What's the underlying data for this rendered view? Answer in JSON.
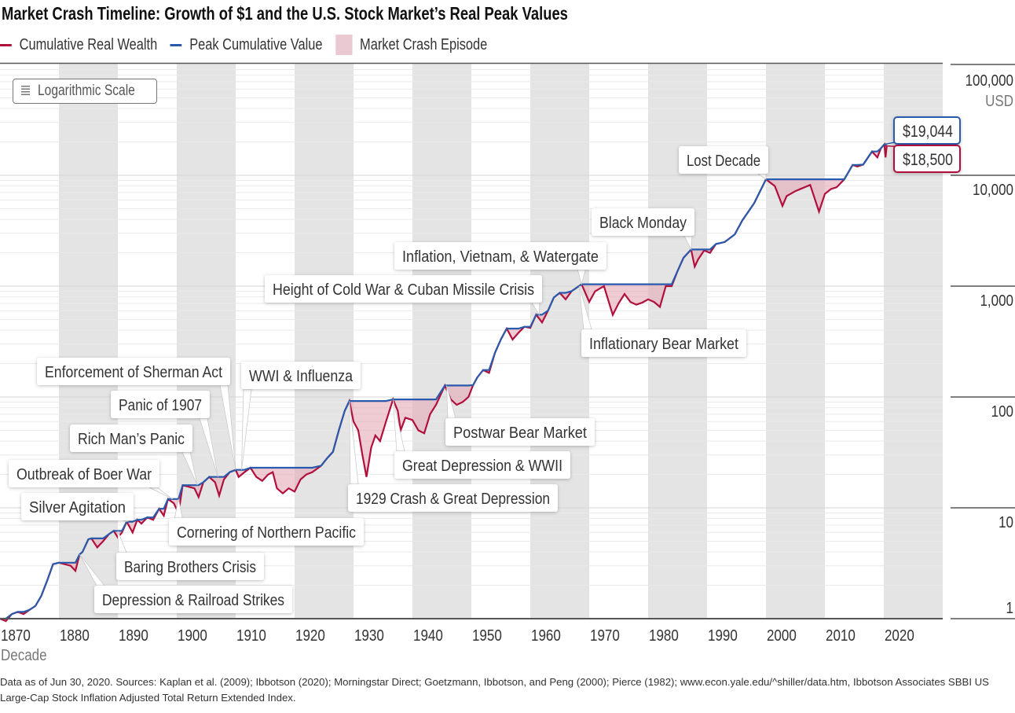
{
  "title": "Market Crash Timeline: Growth of $1 and the U.S. Stock Market’s Real Peak Values",
  "legend": [
    {
      "label": "Cumulative Real Wealth",
      "color": "#b0103c"
    },
    {
      "label": "Peak Cumulative Value",
      "color": "#2a5aab"
    },
    {
      "label": "Market Crash Episode",
      "color": "#ebc9d2"
    }
  ],
  "scale_button": "Logarithmic Scale",
  "footer": "Data as of Jun 30, 2020. Sources: Kaplan et al. (2009); Ibbotson (2020); Morningstar Direct; Goetzmann, Ibbotson, and Peng (2000); Pierce (1982); www.econ.yale.edu/^shiller/data.htm, Ibbotson Associates SBBI US Large-Cap Stock Inflation Adjusted Total Return Extended Index.",
  "chart_data": {
    "type": "line",
    "title": "Market Crash Timeline: Growth of $1 and the U.S. Stock Market’s Real Peak Values",
    "xlabel": "Decade",
    "ylabel": "USD",
    "yscale": "log",
    "xlim": [
      1870,
      2030
    ],
    "ylim": [
      1,
      100000
    ],
    "grid": "horizontal minor log gridlines; alternating grey decade bands",
    "legend_position": "top-left",
    "x_ticks": [
      "1870",
      "1880",
      "1890",
      "1900",
      "1910",
      "1920",
      "1930",
      "1940",
      "1950",
      "1960",
      "1970",
      "1980",
      "1990",
      "2000",
      "2010",
      "2020"
    ],
    "y_ticks": [
      "1",
      "10",
      "100",
      "1,000",
      "10,000",
      "100,000"
    ],
    "series": [
      {
        "name": "Cumulative Real Wealth",
        "color": "#b0103c",
        "x": [
          1870,
          1871,
          1872,
          1873,
          1874,
          1875,
          1876,
          1877,
          1878,
          1879,
          1880,
          1882,
          1882.8,
          1883.5,
          1884,
          1885,
          1885.5,
          1886.5,
          1887.5,
          1888.5,
          1889.3,
          1890,
          1890.7,
          1891.5,
          1892.5,
          1893.3,
          1894,
          1895,
          1896,
          1897,
          1897.8,
          1898.5,
          1899.5,
          1900.3,
          1901,
          1902,
          1903,
          1903.7,
          1904.5,
          1905.5,
          1906.5,
          1907.2,
          1908,
          1909,
          1910,
          1910.5,
          1911.5,
          1912.5,
          1913.5,
          1914.5,
          1915.5,
          1916.3,
          1917,
          1918,
          1919,
          1920,
          1921,
          1922,
          1923,
          1924.5,
          1925.5,
          1926.5,
          1927.5,
          1928.5,
          1929.3,
          1930,
          1930.8,
          1931.5,
          1932.2,
          1933,
          1933.7,
          1934.5,
          1935.5,
          1936.7,
          1937.5,
          1938,
          1938.8,
          1940,
          1941,
          1942,
          1943,
          1944,
          1945.5,
          1946.5,
          1947.5,
          1948.5,
          1949.5,
          1950.3,
          1951,
          1952,
          1953,
          1954,
          1955,
          1956,
          1957,
          1958,
          1959,
          1960,
          1961,
          1962,
          1963,
          1964,
          1965,
          1966,
          1967,
          1968.7,
          1970,
          1971,
          1972.5,
          1974,
          1975,
          1976,
          1977,
          1978,
          1979,
          1980,
          1981,
          1982,
          1983,
          1984,
          1985,
          1986,
          1987.3,
          1987.9,
          1988.5,
          1989.5,
          1990.5,
          1991.5,
          1993,
          1994.7,
          1996,
          1998,
          2000,
          2001.5,
          2002.8,
          2003.5,
          2005,
          2007.5,
          2009,
          2010,
          2011,
          2012,
          2013.3,
          2014.7,
          2015.5,
          2016.5,
          2018,
          2018.9,
          2019.5,
          2020.1,
          2020.3,
          2020.5
        ],
        "y": [
          1.0,
          0.95,
          1.1,
          1.15,
          1.1,
          1.2,
          1.3,
          1.6,
          2.2,
          3.1,
          3.2,
          3.0,
          2.7,
          3.8,
          4.0,
          5.2,
          5.3,
          4.4,
          5.0,
          5.8,
          6.2,
          5.4,
          6.0,
          7.5,
          6.0,
          7.8,
          7.2,
          8.2,
          7.8,
          9.8,
          8.5,
          12,
          11,
          8.9,
          16,
          15.5,
          15,
          12.5,
          17,
          19,
          17,
          12.9,
          18,
          21,
          22,
          19,
          21,
          23,
          19,
          17.5,
          20,
          21,
          15,
          13.5,
          15,
          14,
          18,
          20,
          21,
          24,
          28,
          32,
          50,
          75,
          92,
          60,
          50,
          30,
          19,
          35,
          45,
          40,
          60,
          95,
          75,
          50,
          65,
          62,
          50,
          47,
          70,
          85,
          127,
          95,
          85,
          90,
          100,
          128,
          150,
          175,
          165,
          250,
          330,
          414,
          330,
          380,
          430,
          420,
          553,
          470,
          600,
          790,
          870,
          760,
          900,
          1040,
          720,
          900,
          1000,
          550,
          700,
          850,
          720,
          680,
          710,
          760,
          720,
          650,
          1000,
          1000,
          1370,
          1800,
          2140,
          1500,
          1750,
          2100,
          2000,
          2400,
          2500,
          2930,
          3930,
          5600,
          9200,
          8000,
          5300,
          6500,
          7200,
          8200,
          4700,
          6800,
          7500,
          7800,
          9200,
          12400,
          12000,
          12500,
          16400,
          14500,
          17500,
          19044,
          14500,
          18500
        ]
      },
      {
        "name": "Peak Cumulative Value",
        "color": "#2a5aab",
        "derived_from": "running maximum of Cumulative Real Wealth"
      }
    ],
    "end_labels": {
      "peak": "$19,044",
      "real": "$18,500"
    },
    "annotations": [
      {
        "label": "Depression & Railroad Strikes",
        "year": 1883.5
      },
      {
        "label": "Baring Brothers Crisis",
        "year": 1890
      },
      {
        "label": "Silver Agitation",
        "year": 1891.5
      },
      {
        "label": "Cornering of Northern Pacific",
        "year": 1900.3
      },
      {
        "label": "Outbreak of Boer War",
        "year": 1899.3
      },
      {
        "label": "Rich Man’s Panic",
        "year": 1903.5
      },
      {
        "label": "Panic of 1907",
        "year": 1907
      },
      {
        "label": "Enforcement of Sherman Act",
        "year": 1910
      },
      {
        "label": "WWI & Influenza",
        "year": 1911
      },
      {
        "label": "1929 Crash & Great Depression",
        "year": 1929.3
      },
      {
        "label": "Great Depression & WWII",
        "year": 1936.7
      },
      {
        "label": "Postwar Bear Market",
        "year": 1945.8
      },
      {
        "label": "Height of Cold War & Cuban Missile Crisis",
        "year": 1961.5
      },
      {
        "label": "Inflation, Vietnam, & Watergate",
        "year": 1968.7
      },
      {
        "label": "Inflationary Bear Market",
        "year": 1968.3
      },
      {
        "label": "Black Monday",
        "year": 1987.3
      },
      {
        "label": "Lost Decade",
        "year": 2000
      }
    ]
  }
}
